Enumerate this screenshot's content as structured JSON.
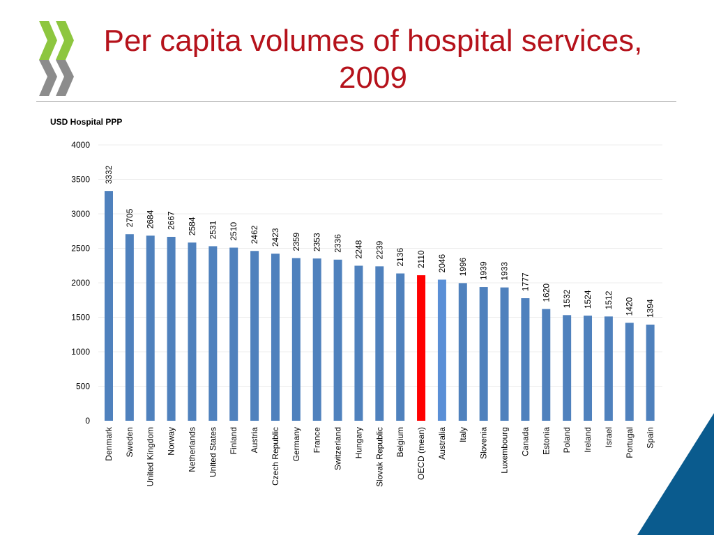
{
  "slide": {
    "title_line1": "Per capita volumes of hospital services,",
    "title_line2": "2009",
    "logo_icon": "oecd-chevrons-logo-icon",
    "corner_icon": "blue-corner-triangle-icon"
  },
  "colors": {
    "title": "#b5121b",
    "bar": "#4f81bd",
    "highlight_bar": "#ff0000",
    "australia_bar": "#5a8fd6",
    "logo_green": "#8dc63f",
    "logo_gray": "#8c8c8c",
    "corner": "#0a5b8e"
  },
  "chart_data": {
    "type": "bar",
    "title": "Per capita volumes of hospital services, 2009",
    "ylabel": "USD Hospital PPP",
    "xlabel": "",
    "ylim": [
      0,
      4000
    ],
    "yticks": [
      0,
      500,
      1000,
      1500,
      2000,
      2500,
      3000,
      3500,
      4000
    ],
    "grid": true,
    "highlight": "OECD (mean)",
    "categories": [
      "Denmark",
      "Sweden",
      "United Kingdom",
      "Norway",
      "Netherlands",
      "United States",
      "Finland",
      "Austria",
      "Czech Republic",
      "Germany",
      "France",
      "Switzerland",
      "Hungary",
      "Slovak Republic",
      "Belgium",
      "OECD (mean)",
      "Australia",
      "Italy",
      "Slovenia",
      "Luxembourg",
      "Canada",
      "Estonia",
      "Poland",
      "Ireland",
      "Israel",
      "Portugal",
      "Spain"
    ],
    "values": [
      3332,
      2705,
      2684,
      2667,
      2584,
      2531,
      2510,
      2462,
      2423,
      2359,
      2353,
      2336,
      2248,
      2239,
      2136,
      2110,
      2046,
      1996,
      1939,
      1933,
      1777,
      1620,
      1532,
      1524,
      1512,
      1420,
      1394
    ]
  }
}
